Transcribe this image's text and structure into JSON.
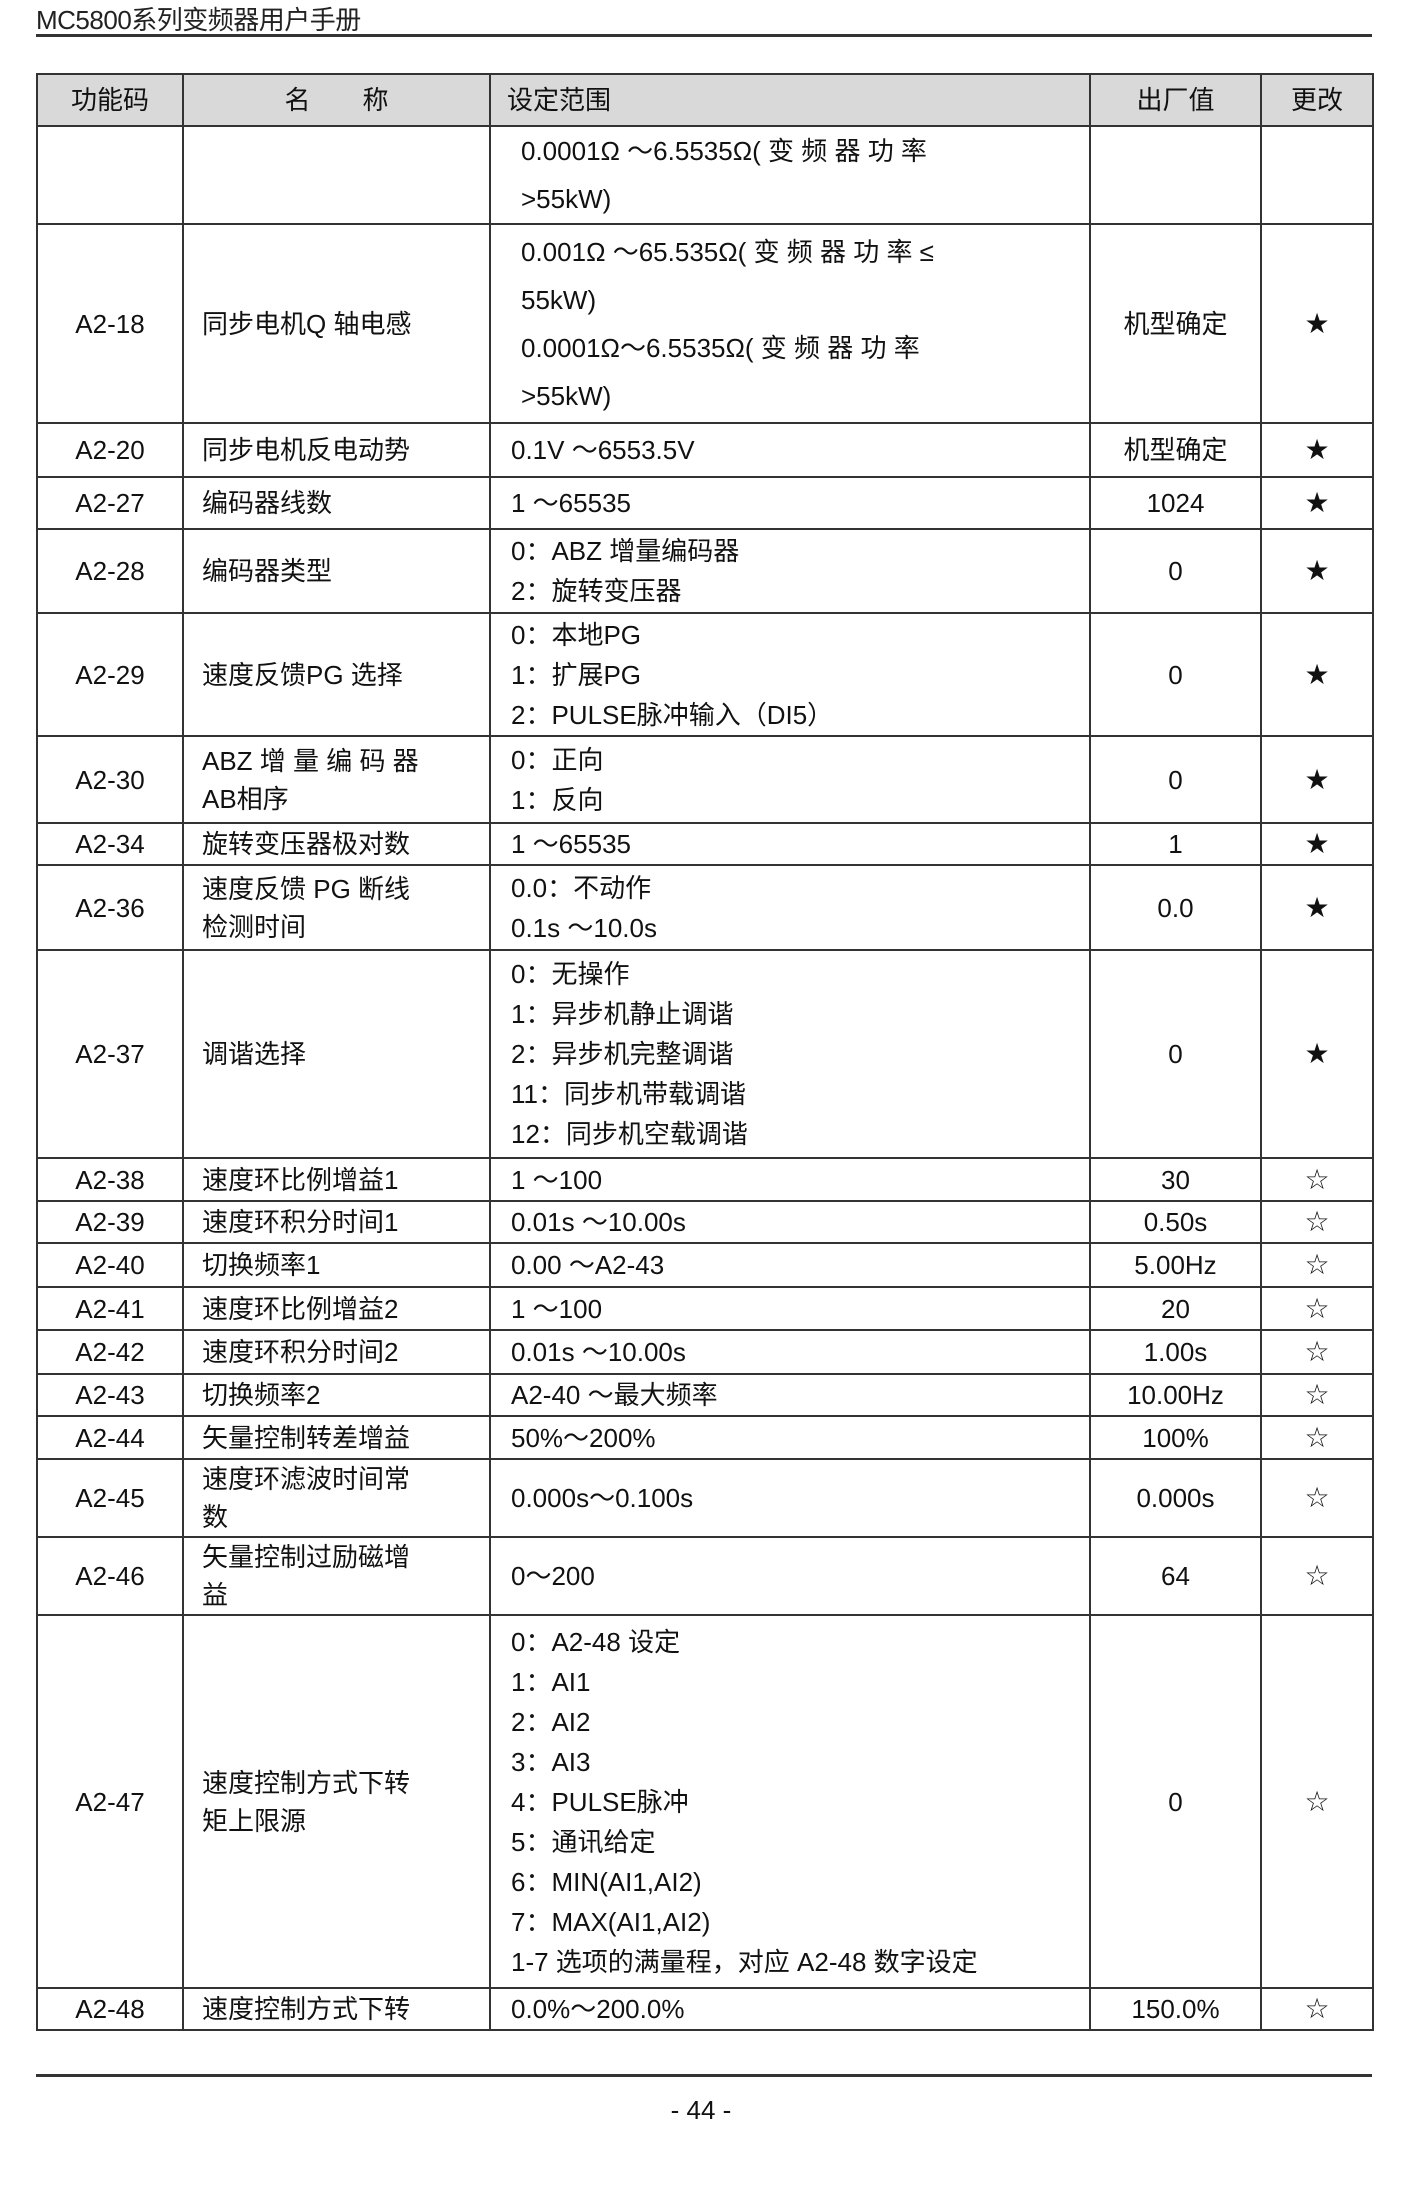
{
  "header": {
    "title": "MC5800系列变频器用户手册"
  },
  "table": {
    "columns": [
      "功能码",
      "名　　称",
      "设定范围",
      "出厂值",
      "更改"
    ],
    "rows": [
      {
        "code": "",
        "name": [],
        "range": [
          "0.0001Ω ～6.5535Ω( 变 频 器 功 率",
          ">55kW)"
        ],
        "default": "",
        "change": ""
      },
      {
        "code": "A2-18",
        "name": [
          "同步电机Q 轴电感"
        ],
        "range": [
          "0.001Ω  ～65.535Ω( 变 频 器 功 率 ≤",
          "55kW)",
          "0.0001Ω～6.5535Ω( 变 频 器 功 率",
          ">55kW)"
        ],
        "default": "机型确定",
        "change": "★"
      },
      {
        "code": "A2-20",
        "name": [
          "同步电机反电动势"
        ],
        "range": [
          "0.1V  ～6553.5V"
        ],
        "default": "机型确定",
        "change": "★"
      },
      {
        "code": "A2-27",
        "name": [
          "编码器线数"
        ],
        "range": [
          "1 ～65535"
        ],
        "default": "1024",
        "change": "★"
      },
      {
        "code": "A2-28",
        "name": [
          "编码器类型"
        ],
        "range": [
          "0：ABZ 增量编码器",
          "2：旋转变压器"
        ],
        "default": "0",
        "change": "★"
      },
      {
        "code": "A2-29",
        "name": [
          "速度反馈PG 选择"
        ],
        "range": [
          "0：本地PG",
          "1：扩展PG",
          "2：PULSE脉冲输入（DI5）"
        ],
        "default": "0",
        "change": "★"
      },
      {
        "code": "A2-30",
        "name": [
          "ABZ  增 量 编 码 器",
          "AB相序"
        ],
        "range": [
          "0：正向",
          "1：反向"
        ],
        "default": "0",
        "change": "★"
      },
      {
        "code": "A2-34",
        "name": [
          "旋转变压器极对数"
        ],
        "range": [
          "1 ～65535"
        ],
        "default": "1",
        "change": "★"
      },
      {
        "code": "A2-36",
        "name": [
          "速度反馈  PG 断线",
          "检测时间"
        ],
        "range": [
          "0.0：不动作",
          "0.1s ～10.0s"
        ],
        "default": "0.0",
        "change": "★"
      },
      {
        "code": "A2-37",
        "name": [
          "调谐选择"
        ],
        "range": [
          "0：无操作",
          "1：异步机静止调谐",
          "2：异步机完整调谐",
          "11：同步机带载调谐",
          "12：同步机空载调谐"
        ],
        "default": "0",
        "change": "★"
      },
      {
        "code": "A2-38",
        "name": [
          "速度环比例增益1"
        ],
        "range": [
          "1  ～100"
        ],
        "default": "30",
        "change": "☆"
      },
      {
        "code": "A2-39",
        "name": [
          "速度环积分时间1"
        ],
        "range": [
          "0.01s ～10.00s"
        ],
        "default": "0.50s",
        "change": "☆"
      },
      {
        "code": "A2-40",
        "name": [
          "切换频率1"
        ],
        "range": [
          "0.00  ～A2-43"
        ],
        "default": "5.00Hz",
        "change": "☆"
      },
      {
        "code": "A2-41",
        "name": [
          "速度环比例增益2"
        ],
        "range": [
          "1  ～100"
        ],
        "default": "20",
        "change": "☆"
      },
      {
        "code": "A2-42",
        "name": [
          "速度环积分时间2"
        ],
        "range": [
          "0.01s  ～10.00s"
        ],
        "default": "1.00s",
        "change": "☆"
      },
      {
        "code": "A2-43",
        "name": [
          "切换频率2"
        ],
        "range": [
          "A2-40  ～最大频率"
        ],
        "default": "10.00Hz",
        "change": "☆"
      },
      {
        "code": "A2-44",
        "name": [
          "矢量控制转差增益"
        ],
        "range": [
          "50%～200%"
        ],
        "default": "100%",
        "change": "☆"
      },
      {
        "code": "A2-45",
        "name": [
          "速度环滤波时间常",
          "数"
        ],
        "range": [
          "0.000s～0.100s"
        ],
        "default": "0.000s",
        "change": "☆"
      },
      {
        "code": "A2-46",
        "name": [
          "矢量控制过励磁增",
          "益"
        ],
        "range": [
          "0～200"
        ],
        "default": "64",
        "change": "☆"
      },
      {
        "code": "A2-47",
        "name": [
          "速度控制方式下转",
          "矩上限源"
        ],
        "range": [
          "0：A2-48 设定",
          "1：AI1",
          "2：AI2",
          "3：AI3",
          "4：PULSE脉冲",
          "5：通讯给定",
          "6：MIN(AI1,AI2)",
          "7：MAX(AI1,AI2)",
          "1-7 选项的满量程，对应 A2-48 数字设定"
        ],
        "default": "0",
        "change": "☆"
      },
      {
        "code": "A2-48",
        "name": [
          "速度控制方式下转"
        ],
        "range": [
          "0.0%～200.0%"
        ],
        "default": "150.0%",
        "change": "☆"
      }
    ]
  },
  "footer": {
    "page": "- 44 -"
  }
}
